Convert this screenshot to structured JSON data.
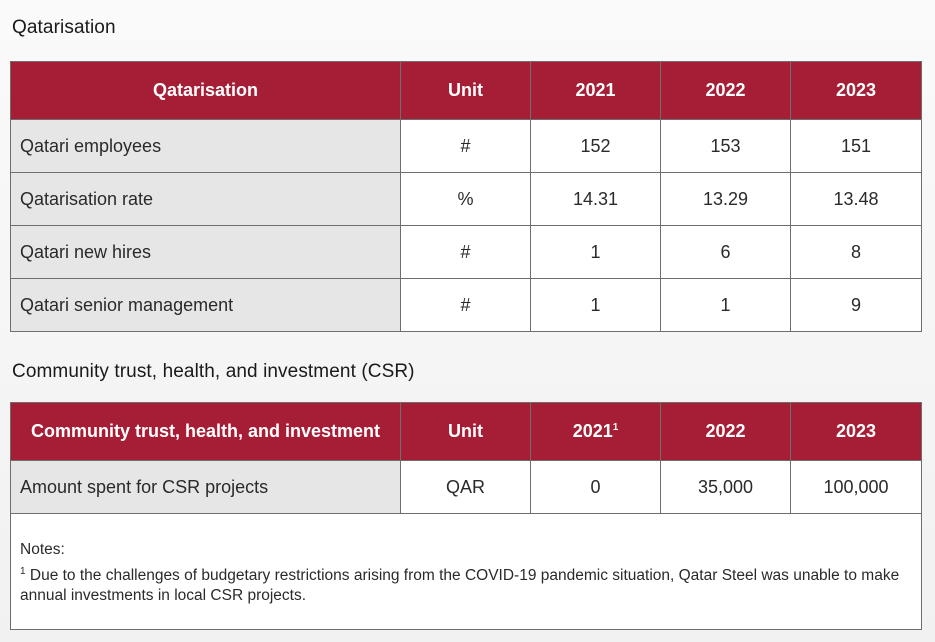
{
  "qatarisation": {
    "section_title": "Qatarisation",
    "headers": [
      "Qatarisation",
      "Unit",
      "2021",
      "2022",
      "2023"
    ],
    "rows": [
      {
        "label": "Qatari employees",
        "unit": "#",
        "y2021": "152",
        "y2022": "153",
        "y2023": "151"
      },
      {
        "label": "Qatarisation rate",
        "unit": "%",
        "y2021": "14.31",
        "y2022": "13.29",
        "y2023": "13.48"
      },
      {
        "label": "Qatari new hires",
        "unit": "#",
        "y2021": "1",
        "y2022": "6",
        "y2023": "8"
      },
      {
        "label": "Qatari senior management",
        "unit": "#",
        "y2021": "1",
        "y2022": "1",
        "y2023": "9"
      }
    ]
  },
  "csr": {
    "section_title": "Community trust, health, and investment (CSR)",
    "headers": [
      "Community trust, health, and investment",
      "Unit",
      "2021",
      "2022",
      "2023"
    ],
    "header_2021_footnote": "1",
    "rows": [
      {
        "label": "Amount spent for CSR projects",
        "unit": "QAR",
        "y2021": "0",
        "y2022": "35,000",
        "y2023": "100,000"
      }
    ],
    "notes_title": "Notes:",
    "note_marker": "1",
    "note_text": "Due to the challenges of budgetary restrictions arising from the COVID-19 pandemic situation, Qatar Steel was unable to make annual investments in local CSR projects."
  }
}
